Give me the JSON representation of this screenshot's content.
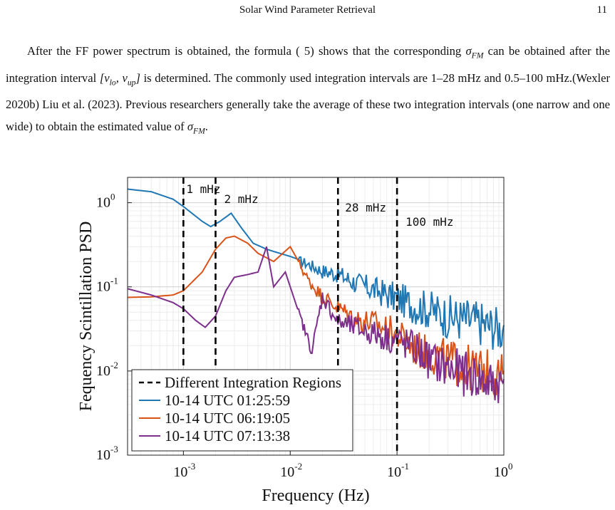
{
  "header": {
    "title": "Solar Wind Parameter Retrieval",
    "page_number": "11"
  },
  "paragraph": {
    "part1": "After the FF power spectrum is obtained, the formula ( 5) shows that the corresponding ",
    "sym_sigma": "σ",
    "sub_fm": "FM",
    "part2": " can be obtained after the integration interval ",
    "interval": "[ν",
    "sub_lo": "lo",
    "comma": ", ν",
    "sub_up": "up",
    "interval_end": "]",
    "part3": " is determined. The commonly used integration intervals are 1–28 mHz and 0.5–100 mHz.(Wexler  2020b) Liu et al.  (2023). Previous researchers generally take the average of these two integration intervals (one narrow and one wide) to obtain the estimated value of ",
    "part4": "."
  },
  "chart_data": {
    "type": "line",
    "x_scale": "log",
    "y_scale": "log",
    "xlim": [
      0.0003,
      1.0
    ],
    "ylim": [
      0.001,
      2.0
    ],
    "xlabel": "Frequency (Hz)",
    "ylabel": "Fequency Scintillation PSD",
    "xticks": [
      {
        "value": 0.001,
        "base": "10",
        "exp": "-3"
      },
      {
        "value": 0.01,
        "base": "10",
        "exp": "-2"
      },
      {
        "value": 0.1,
        "base": "10",
        "exp": "-1"
      },
      {
        "value": 1,
        "base": "10",
        "exp": "0"
      }
    ],
    "yticks": [
      {
        "value": 0.001,
        "base": "10",
        "exp": "-3"
      },
      {
        "value": 0.01,
        "base": "10",
        "exp": "-2"
      },
      {
        "value": 0.1,
        "base": "10",
        "exp": "-1"
      },
      {
        "value": 1,
        "base": "10",
        "exp": "0"
      }
    ],
    "grid": true,
    "legend_position": "bottom-left",
    "vlines": [
      {
        "x": 0.001,
        "label": "1 mHz"
      },
      {
        "x": 0.002,
        "label": "2 mHz"
      },
      {
        "x": 0.028,
        "label": "28 mHz"
      },
      {
        "x": 0.1,
        "label": "100 mHz"
      }
    ],
    "vline_legend": "Different Integration Regions",
    "series": [
      {
        "name": "10-14 UTC 01:25:59",
        "color": "#1f77b4",
        "x": [
          0.0003,
          0.0005,
          0.0008,
          0.001,
          0.0015,
          0.0018,
          0.0022,
          0.0028,
          0.0035,
          0.0045,
          0.006,
          0.008,
          0.01,
          0.015,
          0.02,
          0.028,
          0.04,
          0.06,
          0.1,
          0.15,
          0.2,
          0.3,
          0.5,
          0.7,
          1.0
        ],
        "y": [
          1.45,
          1.35,
          1.1,
          0.9,
          0.6,
          0.52,
          0.6,
          0.75,
          0.5,
          0.33,
          0.28,
          0.25,
          0.23,
          0.19,
          0.16,
          0.15,
          0.12,
          0.1,
          0.08,
          0.065,
          0.06,
          0.05,
          0.045,
          0.04,
          0.035
        ]
      },
      {
        "name": "10-14 UTC 06:19:05",
        "color": "#d95319",
        "x": [
          0.0003,
          0.0005,
          0.0008,
          0.001,
          0.0015,
          0.002,
          0.0025,
          0.003,
          0.004,
          0.005,
          0.007,
          0.01,
          0.015,
          0.02,
          0.028,
          0.04,
          0.06,
          0.1,
          0.15,
          0.2,
          0.3,
          0.5,
          0.7,
          1.0
        ],
        "y": [
          0.075,
          0.076,
          0.08,
          0.09,
          0.15,
          0.28,
          0.38,
          0.4,
          0.33,
          0.25,
          0.2,
          0.3,
          0.12,
          0.08,
          0.06,
          0.045,
          0.04,
          0.03,
          0.02,
          0.018,
          0.015,
          0.012,
          0.011,
          0.01
        ]
      },
      {
        "name": "10-14 UTC 07:13:38",
        "color": "#7e2f8e",
        "x": [
          0.0003,
          0.0005,
          0.0008,
          0.001,
          0.0013,
          0.0016,
          0.002,
          0.0025,
          0.003,
          0.004,
          0.005,
          0.006,
          0.007,
          0.009,
          0.012,
          0.016,
          0.02,
          0.028,
          0.04,
          0.06,
          0.1,
          0.15,
          0.2,
          0.3,
          0.5,
          0.7,
          1.0
        ],
        "y": [
          0.095,
          0.08,
          0.065,
          0.055,
          0.04,
          0.033,
          0.045,
          0.09,
          0.13,
          0.14,
          0.15,
          0.3,
          0.1,
          0.15,
          0.05,
          0.018,
          0.08,
          0.04,
          0.035,
          0.03,
          0.025,
          0.02,
          0.015,
          0.012,
          0.01,
          0.008,
          0.008
        ]
      }
    ]
  }
}
